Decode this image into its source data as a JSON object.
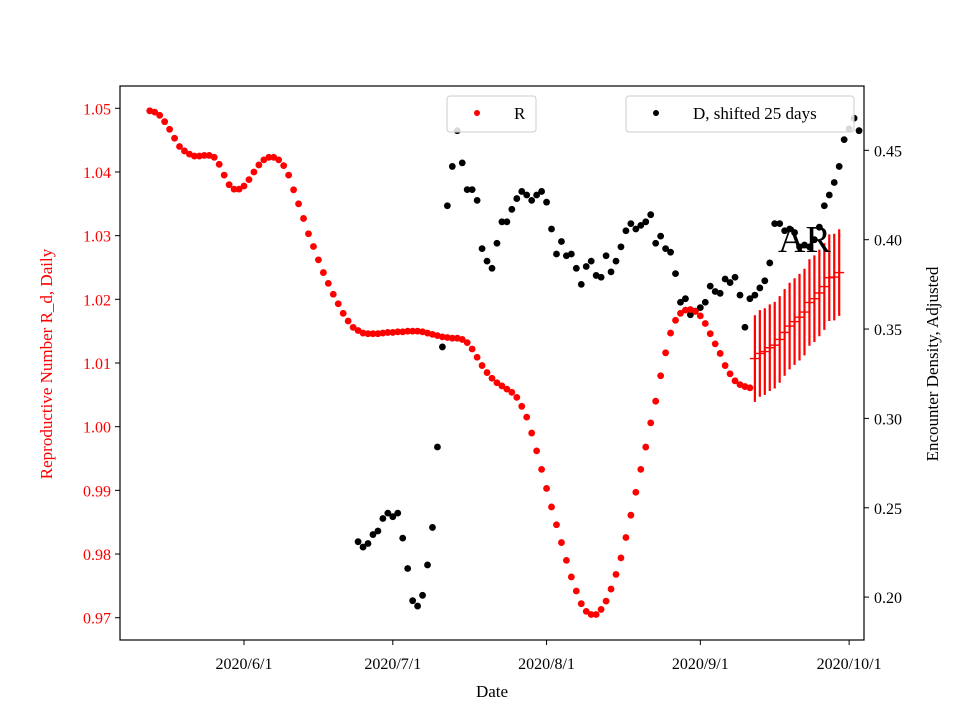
{
  "chart_data": {
    "type": "scatter",
    "xlabel": "Date",
    "ylabel_left": "Reproductive Number R_d, Daily",
    "ylabel_right": "Encounter Density, Adjusted",
    "x_ticks": [
      "2020/6/1",
      "2020/7/1",
      "2020/8/1",
      "2020/9/1",
      "2020/10/1"
    ],
    "x_range": [
      "2020-05-07",
      "2020-10-04"
    ],
    "y_left_range": [
      0.9665,
      1.0535
    ],
    "y_left_ticks": [
      "0.97",
      "0.98",
      "0.99",
      "1.00",
      "1.01",
      "1.02",
      "1.03",
      "1.04",
      "1.05"
    ],
    "y_right_range": [
      0.176,
      0.486
    ],
    "y_right_ticks": [
      "0.20",
      "0.25",
      "0.30",
      "0.35",
      "0.40",
      "0.45"
    ],
    "colors": {
      "R": "#ff0000",
      "D": "#000000",
      "AR": "#ff0000",
      "left_axis": "#ff0000",
      "right_axis": "#000000"
    },
    "legend_R": {
      "label": "R",
      "placement": "upper-center"
    },
    "legend_D": {
      "label": "D, shifted 25 days",
      "placement": "upper-right"
    },
    "annotation": "AR",
    "R_series": [
      [
        "2020-05-13",
        1.0496
      ],
      [
        "2020-05-14",
        1.0494
      ],
      [
        "2020-05-15",
        1.0489
      ],
      [
        "2020-05-16",
        1.0479
      ],
      [
        "2020-05-17",
        1.0467
      ],
      [
        "2020-05-18",
        1.0453
      ],
      [
        "2020-05-19",
        1.044
      ],
      [
        "2020-05-20",
        1.0433
      ],
      [
        "2020-05-21",
        1.0428
      ],
      [
        "2020-05-22",
        1.0425
      ],
      [
        "2020-05-23",
        1.0425
      ],
      [
        "2020-05-24",
        1.0426
      ],
      [
        "2020-05-25",
        1.0426
      ],
      [
        "2020-05-26",
        1.0423
      ],
      [
        "2020-05-27",
        1.0412
      ],
      [
        "2020-05-28",
        1.0395
      ],
      [
        "2020-05-29",
        1.038
      ],
      [
        "2020-05-30",
        1.0373
      ],
      [
        "2020-05-31",
        1.0373
      ],
      [
        "2020-06-01",
        1.0378
      ],
      [
        "2020-06-02",
        1.0388
      ],
      [
        "2020-06-03",
        1.04
      ],
      [
        "2020-06-04",
        1.0411
      ],
      [
        "2020-06-05",
        1.0419
      ],
      [
        "2020-06-06",
        1.0423
      ],
      [
        "2020-06-07",
        1.0423
      ],
      [
        "2020-06-08",
        1.0419
      ],
      [
        "2020-06-09",
        1.041
      ],
      [
        "2020-06-10",
        1.0395
      ],
      [
        "2020-06-11",
        1.0372
      ],
      [
        "2020-06-12",
        1.035
      ],
      [
        "2020-06-13",
        1.0327
      ],
      [
        "2020-06-14",
        1.0303
      ],
      [
        "2020-06-15",
        1.0283
      ],
      [
        "2020-06-16",
        1.0262
      ],
      [
        "2020-06-17",
        1.0242
      ],
      [
        "2020-06-18",
        1.0225
      ],
      [
        "2020-06-19",
        1.0208
      ],
      [
        "2020-06-20",
        1.0193
      ],
      [
        "2020-06-21",
        1.0178
      ],
      [
        "2020-06-22",
        1.0166
      ],
      [
        "2020-06-23",
        1.0156
      ],
      [
        "2020-06-24",
        1.0151
      ],
      [
        "2020-06-25",
        1.0147
      ],
      [
        "2020-06-26",
        1.0146
      ],
      [
        "2020-06-27",
        1.0146
      ],
      [
        "2020-06-28",
        1.0146
      ],
      [
        "2020-06-29",
        1.0147
      ],
      [
        "2020-06-30",
        1.0148
      ],
      [
        "2020-07-01",
        1.0148
      ],
      [
        "2020-07-02",
        1.0149
      ],
      [
        "2020-07-03",
        1.0149
      ],
      [
        "2020-07-04",
        1.015
      ],
      [
        "2020-07-05",
        1.015
      ],
      [
        "2020-07-06",
        1.015
      ],
      [
        "2020-07-07",
        1.0149
      ],
      [
        "2020-07-08",
        1.0147
      ],
      [
        "2020-07-09",
        1.0145
      ],
      [
        "2020-07-10",
        1.0143
      ],
      [
        "2020-07-11",
        1.0141
      ],
      [
        "2020-07-12",
        1.014
      ],
      [
        "2020-07-13",
        1.0139
      ],
      [
        "2020-07-14",
        1.0139
      ],
      [
        "2020-07-15",
        1.0137
      ],
      [
        "2020-07-16",
        1.0132
      ],
      [
        "2020-07-17",
        1.0122
      ],
      [
        "2020-07-18",
        1.0109
      ],
      [
        "2020-07-19",
        1.0096
      ],
      [
        "2020-07-20",
        1.0085
      ],
      [
        "2020-07-21",
        1.0076
      ],
      [
        "2020-07-22",
        1.0069
      ],
      [
        "2020-07-23",
        1.0064
      ],
      [
        "2020-07-24",
        1.0059
      ],
      [
        "2020-07-25",
        1.0054
      ],
      [
        "2020-07-26",
        1.0046
      ],
      [
        "2020-07-27",
        1.0032
      ],
      [
        "2020-07-28",
        1.0015
      ],
      [
        "2020-07-29",
        0.999
      ],
      [
        "2020-07-30",
        0.9962
      ],
      [
        "2020-07-31",
        0.9933
      ],
      [
        "2020-08-01",
        0.9903
      ],
      [
        "2020-08-02",
        0.9874
      ],
      [
        "2020-08-03",
        0.9846
      ],
      [
        "2020-08-04",
        0.9818
      ],
      [
        "2020-08-05",
        0.979
      ],
      [
        "2020-08-06",
        0.9764
      ],
      [
        "2020-08-07",
        0.9742
      ],
      [
        "2020-08-08",
        0.9722
      ],
      [
        "2020-08-09",
        0.971
      ],
      [
        "2020-08-10",
        0.9705
      ],
      [
        "2020-08-11",
        0.9705
      ],
      [
        "2020-08-12",
        0.9713
      ],
      [
        "2020-08-13",
        0.9726
      ],
      [
        "2020-08-14",
        0.9745
      ],
      [
        "2020-08-15",
        0.9768
      ],
      [
        "2020-08-16",
        0.9794
      ],
      [
        "2020-08-17",
        0.9826
      ],
      [
        "2020-08-18",
        0.9861
      ],
      [
        "2020-08-19",
        0.9897
      ],
      [
        "2020-08-20",
        0.9933
      ],
      [
        "2020-08-21",
        0.9968
      ],
      [
        "2020-08-22",
        1.0006
      ],
      [
        "2020-08-23",
        1.004
      ],
      [
        "2020-08-24",
        1.008
      ],
      [
        "2020-08-25",
        1.0116
      ],
      [
        "2020-08-26",
        1.0147
      ],
      [
        "2020-08-27",
        1.0167
      ],
      [
        "2020-08-28",
        1.0178
      ],
      [
        "2020-08-29",
        1.0183
      ],
      [
        "2020-08-30",
        1.0184
      ],
      [
        "2020-08-31",
        1.0181
      ],
      [
        "2020-09-01",
        1.0174
      ],
      [
        "2020-09-02",
        1.0162
      ],
      [
        "2020-09-03",
        1.0146
      ],
      [
        "2020-09-04",
        1.013
      ],
      [
        "2020-09-05",
        1.0115
      ],
      [
        "2020-09-06",
        1.0096
      ],
      [
        "2020-09-07",
        1.0083
      ],
      [
        "2020-09-08",
        1.0072
      ],
      [
        "2020-09-09",
        1.0066
      ],
      [
        "2020-09-10",
        1.0063
      ],
      [
        "2020-09-11",
        1.0061
      ]
    ],
    "D_series": [
      [
        "2020-06-24",
        0.231
      ],
      [
        "2020-06-25",
        0.228
      ],
      [
        "2020-06-26",
        0.23
      ],
      [
        "2020-06-27",
        0.235
      ],
      [
        "2020-06-28",
        0.237
      ],
      [
        "2020-06-29",
        0.244
      ],
      [
        "2020-06-30",
        0.247
      ],
      [
        "2020-07-01",
        0.245
      ],
      [
        "2020-07-02",
        0.247
      ],
      [
        "2020-07-03",
        0.233
      ],
      [
        "2020-07-04",
        0.216
      ],
      [
        "2020-07-05",
        0.198
      ],
      [
        "2020-07-06",
        0.195
      ],
      [
        "2020-07-07",
        0.201
      ],
      [
        "2020-07-08",
        0.218
      ],
      [
        "2020-07-09",
        0.239
      ],
      [
        "2020-07-10",
        0.284
      ],
      [
        "2020-07-11",
        0.34
      ],
      [
        "2020-07-12",
        0.419
      ],
      [
        "2020-07-13",
        0.441
      ],
      [
        "2020-07-14",
        0.461
      ],
      [
        "2020-07-15",
        0.443
      ],
      [
        "2020-07-16",
        0.428
      ],
      [
        "2020-07-17",
        0.428
      ],
      [
        "2020-07-18",
        0.422
      ],
      [
        "2020-07-19",
        0.395
      ],
      [
        "2020-07-20",
        0.388
      ],
      [
        "2020-07-21",
        0.384
      ],
      [
        "2020-07-22",
        0.398
      ],
      [
        "2020-07-23",
        0.41
      ],
      [
        "2020-07-24",
        0.41
      ],
      [
        "2020-07-25",
        0.417
      ],
      [
        "2020-07-26",
        0.423
      ],
      [
        "2020-07-27",
        0.427
      ],
      [
        "2020-07-28",
        0.425
      ],
      [
        "2020-07-29",
        0.422
      ],
      [
        "2020-07-30",
        0.425
      ],
      [
        "2020-07-31",
        0.427
      ],
      [
        "2020-08-01",
        0.421
      ],
      [
        "2020-08-02",
        0.406
      ],
      [
        "2020-08-03",
        0.392
      ],
      [
        "2020-08-04",
        0.399
      ],
      [
        "2020-08-05",
        0.391
      ],
      [
        "2020-08-06",
        0.392
      ],
      [
        "2020-08-07",
        0.384
      ],
      [
        "2020-08-08",
        0.375
      ],
      [
        "2020-08-09",
        0.385
      ],
      [
        "2020-08-10",
        0.388
      ],
      [
        "2020-08-11",
        0.38
      ],
      [
        "2020-08-12",
        0.379
      ],
      [
        "2020-08-13",
        0.391
      ],
      [
        "2020-08-14",
        0.382
      ],
      [
        "2020-08-15",
        0.388
      ],
      [
        "2020-08-16",
        0.396
      ],
      [
        "2020-08-17",
        0.405
      ],
      [
        "2020-08-18",
        0.409
      ],
      [
        "2020-08-19",
        0.406
      ],
      [
        "2020-08-20",
        0.408
      ],
      [
        "2020-08-21",
        0.41
      ],
      [
        "2020-08-22",
        0.414
      ],
      [
        "2020-08-23",
        0.398
      ],
      [
        "2020-08-24",
        0.402
      ],
      [
        "2020-08-25",
        0.395
      ],
      [
        "2020-08-26",
        0.393
      ],
      [
        "2020-08-27",
        0.381
      ],
      [
        "2020-08-28",
        0.365
      ],
      [
        "2020-08-29",
        0.367
      ],
      [
        "2020-08-30",
        0.358
      ],
      [
        "2020-08-31",
        0.36
      ],
      [
        "2020-09-01",
        0.362
      ],
      [
        "2020-09-02",
        0.365
      ],
      [
        "2020-09-03",
        0.374
      ],
      [
        "2020-09-04",
        0.371
      ],
      [
        "2020-09-05",
        0.37
      ],
      [
        "2020-09-06",
        0.378
      ],
      [
        "2020-09-07",
        0.376
      ],
      [
        "2020-09-08",
        0.379
      ],
      [
        "2020-09-09",
        0.369
      ],
      [
        "2020-09-10",
        0.351
      ],
      [
        "2020-09-11",
        0.367
      ],
      [
        "2020-09-12",
        0.369
      ],
      [
        "2020-09-13",
        0.373
      ],
      [
        "2020-09-14",
        0.377
      ],
      [
        "2020-09-15",
        0.387
      ]
    ],
    "D_series_late": [
      [
        "2020-09-16",
        0.409
      ],
      [
        "2020-09-17",
        0.409
      ],
      [
        "2020-09-18",
        0.405
      ],
      [
        "2020-09-19",
        0.406
      ],
      [
        "2020-09-20",
        0.404
      ],
      [
        "2020-09-21",
        0.396
      ],
      [
        "2020-09-22",
        0.397
      ],
      [
        "2020-09-23",
        0.396
      ],
      [
        "2020-09-24",
        0.4
      ],
      [
        "2020-09-25",
        0.407
      ],
      [
        "2020-09-26",
        0.419
      ],
      [
        "2020-09-27",
        0.425
      ],
      [
        "2020-09-28",
        0.432
      ],
      [
        "2020-09-29",
        0.441
      ],
      [
        "2020-09-30",
        0.456
      ],
      [
        "2020-10-01",
        0.462
      ],
      [
        "2020-10-02",
        0.468
      ],
      [
        "2020-10-03",
        0.461
      ]
    ],
    "AR_series": [
      [
        "2020-09-12",
        1.0107,
        0.0068
      ],
      [
        "2020-09-13",
        1.0115,
        0.0068
      ],
      [
        "2020-09-14",
        1.0118,
        0.0068
      ],
      [
        "2020-09-15",
        1.0124,
        0.0068
      ],
      [
        "2020-09-16",
        1.0128,
        0.0068
      ],
      [
        "2020-09-17",
        1.0137,
        0.0068
      ],
      [
        "2020-09-18",
        1.0148,
        0.0068
      ],
      [
        "2020-09-19",
        1.0158,
        0.0068
      ],
      [
        "2020-09-20",
        1.0165,
        0.0068
      ],
      [
        "2020-09-21",
        1.0172,
        0.0068
      ],
      [
        "2020-09-22",
        1.018,
        0.0068
      ],
      [
        "2020-09-23",
        1.0195,
        0.0068
      ],
      [
        "2020-09-24",
        1.0201,
        0.0068
      ],
      [
        "2020-09-25",
        1.021,
        0.0068
      ],
      [
        "2020-09-26",
        1.022,
        0.0068
      ],
      [
        "2020-09-27",
        1.0234,
        0.0068
      ],
      [
        "2020-09-28",
        1.0235,
        0.0068
      ],
      [
        "2020-09-29",
        1.0242,
        0.0068
      ]
    ]
  }
}
